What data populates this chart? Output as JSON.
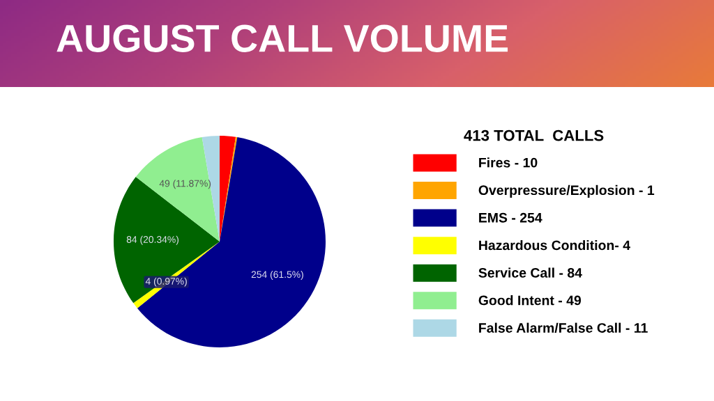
{
  "chart_data": {
    "type": "pie",
    "title": "AUGUST CALL VOLUME",
    "legend_title": "413 TOTAL  CALLS",
    "legend": "right",
    "categories": [
      "Fires - 10",
      "Overpressure/Explosion - 1",
      "EMS - 254",
      "Hazardous Condition- 4",
      "Service Call - 84",
      "Good Intent - 49",
      "False Alarm/False Call - 11"
    ],
    "values": [
      10,
      1,
      254,
      4,
      84,
      49,
      11
    ],
    "colors": [
      "#ff0000",
      "#ffa500",
      "#00008b",
      "#ffff00",
      "#006400",
      "#90ee90",
      "#add8e6"
    ],
    "value_labels": [
      null,
      null,
      "254 (61.5%)",
      "4 (0.97%)",
      "84 (20.34%)",
      "49 (11.87%)",
      null
    ]
  }
}
